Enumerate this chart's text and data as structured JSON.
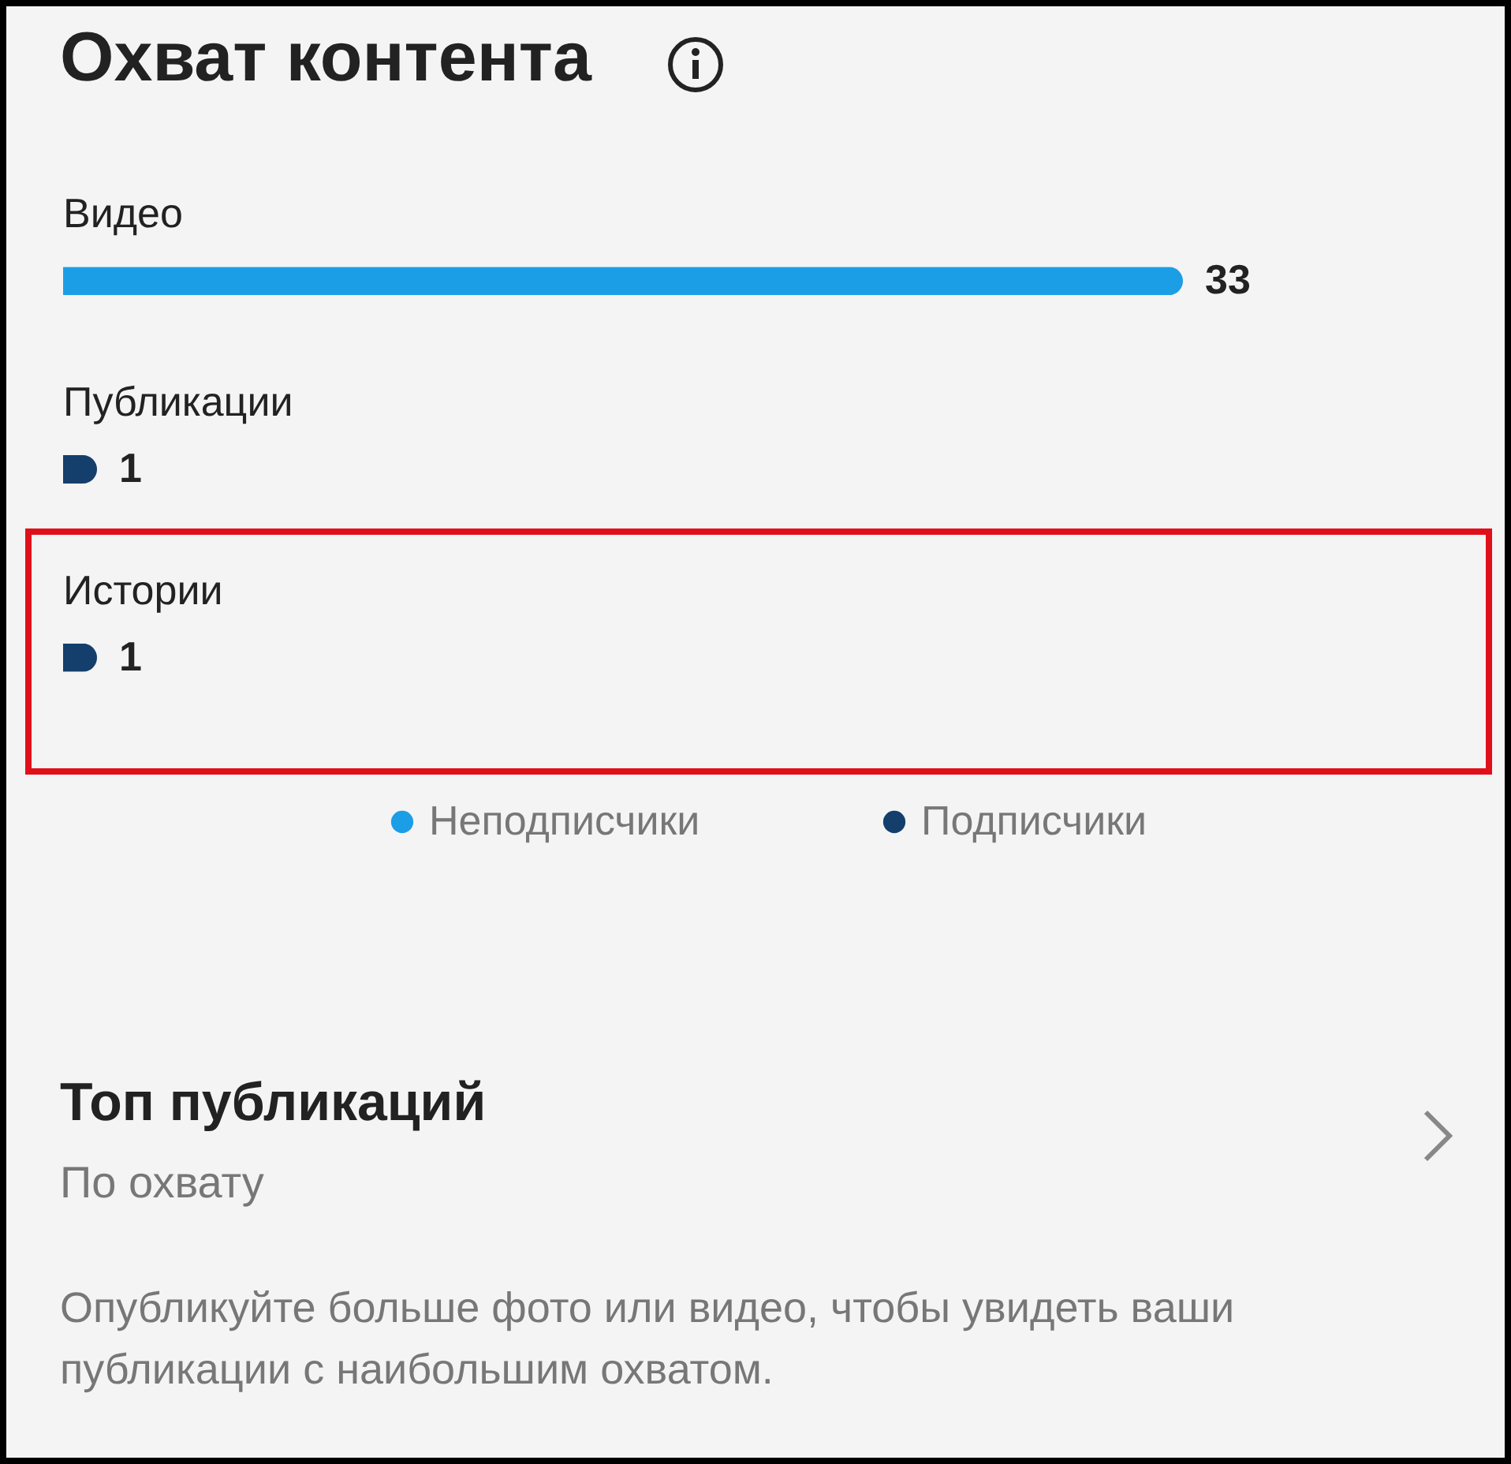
{
  "chart_data": {
    "type": "bar",
    "orientation": "horizontal",
    "stacked": true,
    "title": "Охват контента",
    "categories": [
      "Видео",
      "Публикации",
      "Истории"
    ],
    "series": [
      {
        "name": "Неподписчики",
        "color": "#1b9ee6",
        "values": [
          33,
          null,
          null
        ]
      },
      {
        "name": "Подписчики",
        "color": "#143e6c",
        "values": [
          null,
          1,
          1
        ]
      }
    ],
    "data_labels": true,
    "tick_labels": false,
    "legend": "bottom",
    "annotations": [
      "Топ публикаций",
      "По охвату",
      "Опубликуйте больше фото или видео, чтобы увидеть ваши публикации с наибольшим охватом."
    ]
  }
}
